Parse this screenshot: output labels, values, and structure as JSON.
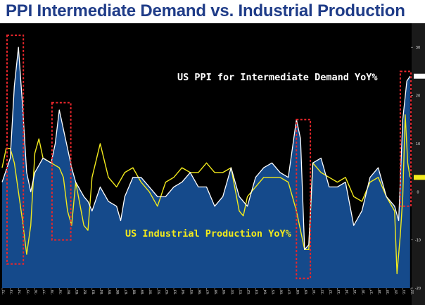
{
  "title": "PPI Intermediate Demand vs. Industrial Production",
  "chart_data": {
    "type": "line",
    "title": "PPI Intermediate Demand vs. Industrial Production",
    "colors": {
      "ppi": "#ffffff",
      "ppi_fill": "#154a8b",
      "ip": "#f2ea1c",
      "background": "#000000",
      "highlight": "#e8262b"
    },
    "series": [
      {
        "name": "US PPI for Intermediate Demand YoY%",
        "style": "area",
        "x": [
          1972,
          1973,
          1973.5,
          1974,
          1974.5,
          1975,
          1975.5,
          1976,
          1977,
          1978,
          1978.5,
          1979,
          1979.5,
          1980,
          1980.5,
          1981,
          1982,
          1982.5,
          1983,
          1984,
          1985,
          1986,
          1986.5,
          1987,
          1988,
          1989,
          1990,
          1991,
          1992,
          1993,
          1994,
          1995,
          1996,
          1997,
          1998,
          1999,
          2000,
          2001,
          2002,
          2003,
          2004,
          2005,
          2006,
          2007,
          2008,
          2008.5,
          2009,
          2009.5,
          2010,
          2011,
          2012,
          2013,
          2014,
          2015,
          2016,
          2017,
          2018,
          2019,
          2020,
          2020.5,
          2021,
          2021.5,
          2021.9
        ],
        "values": [
          2,
          7,
          22,
          30,
          18,
          4,
          0,
          4,
          7,
          6,
          10,
          17,
          13,
          9,
          5,
          2,
          -1,
          -2,
          -4,
          1,
          -2,
          -3,
          -6,
          -1,
          3,
          3,
          1,
          -1,
          -1,
          1,
          2,
          4,
          1,
          1,
          -3,
          -1,
          5,
          -1,
          -3,
          3,
          5,
          6,
          4,
          3,
          15,
          11,
          -12,
          -11,
          6,
          7,
          1,
          1,
          2,
          -7,
          -4,
          3,
          5,
          -1,
          -3,
          -6,
          15,
          23,
          24
        ]
      },
      {
        "name": "US Industrial Production YoY%",
        "style": "line",
        "x": [
          1972,
          1972.5,
          1973,
          1973.5,
          1974,
          1974.5,
          1975,
          1975.5,
          1976,
          1976.5,
          1977,
          1978,
          1979,
          1979.5,
          1980,
          1980.5,
          1981,
          1982,
          1982.5,
          1983,
          1984,
          1985,
          1986,
          1987,
          1988,
          1989,
          1990,
          1991,
          1992,
          1993,
          1994,
          1995,
          1996,
          1997,
          1998,
          1999,
          2000,
          2001,
          2001.5,
          2002,
          2003,
          2004,
          2005,
          2006,
          2007,
          2008,
          2008.5,
          2009,
          2009.5,
          2010,
          2011,
          2012,
          2013,
          2014,
          2015,
          2016,
          2017,
          2018,
          2019,
          2020,
          2020.3,
          2020.7,
          2021,
          2021.3,
          2021.6,
          2021.9
        ],
        "values": [
          5,
          9,
          9,
          6,
          0,
          -6,
          -13,
          -7,
          8,
          11,
          7,
          6,
          5,
          3,
          -4,
          -7,
          2,
          -7,
          -8,
          3,
          10,
          3,
          1,
          4,
          5,
          2,
          0,
          -3,
          2,
          3,
          5,
          4,
          4,
          6,
          4,
          4,
          5,
          -4,
          -5,
          -1,
          1,
          3,
          3,
          3,
          2,
          -4,
          -8,
          -12,
          -12,
          6,
          4,
          3,
          2,
          3,
          -1,
          -2,
          2,
          3,
          -1,
          -4,
          -17,
          -9,
          -1,
          16,
          6,
          3
        ]
      }
    ],
    "xlabel": "",
    "ylabel": "",
    "xlim": [
      1972,
      2022
    ],
    "ylim": [
      -20,
      35
    ],
    "x_tick_labels": [
      "'72",
      "'73",
      "'74",
      "'75",
      "'76",
      "'77",
      "'78",
      "'79",
      "'80",
      "'81",
      "'82",
      "'83",
      "'84",
      "'85",
      "'86",
      "'87",
      "'88",
      "'89",
      "'90",
      "'91",
      "'92",
      "'93",
      "'94",
      "'95",
      "'96",
      "'97",
      "'98",
      "'99",
      "'00",
      "'01",
      "'02",
      "'03",
      "'04",
      "'05",
      "'06",
      "'07",
      "'08",
      "'09",
      "'10",
      "'11",
      "'12",
      "'13",
      "'14",
      "'15",
      "'16",
      "'17",
      "'18",
      "'19",
      "'20",
      "'21",
      "'22"
    ],
    "y_tick_labels": [
      "30",
      "20",
      "10",
      "0",
      "-10",
      "-20"
    ],
    "y_tick_values": [
      30,
      20,
      10,
      0,
      -10,
      -20
    ],
    "annotations": [
      {
        "text": "US PPI for Intermediate Demand YoY%",
        "color": "#ffffff"
      },
      {
        "text": "US Industrial Production YoY%",
        "color": "#f2ea1c"
      }
    ],
    "highlight_boxes": [
      {
        "x0": 1972.6,
        "x1": 1974.6,
        "y0": -15,
        "y1": 32.5
      },
      {
        "x0": 1978.1,
        "x1": 1980.4,
        "y0": -10,
        "y1": 18.5
      },
      {
        "x0": 2008.0,
        "x1": 2009.7,
        "y0": -18,
        "y1": 15
      },
      {
        "x0": 2020.7,
        "x1": 2022.0,
        "y0": -3,
        "y1": 25
      }
    ],
    "last_value_markers": [
      {
        "series": "US PPI for Intermediate Demand YoY%",
        "value": 24,
        "color": "#ffffff"
      },
      {
        "series": "US Industrial Production YoY%",
        "value": 3,
        "color": "#f2ea1c"
      }
    ]
  }
}
